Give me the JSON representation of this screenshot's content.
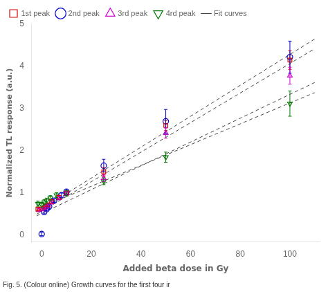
{
  "chart_data": {
    "type": "scatter",
    "x_label": "Added beta dose in Gy",
    "y_label": "Normalized TL response (a.u.)",
    "caption": "Fig. 5. (Colour online) Growth curves for the first four ir",
    "xlim": [
      -4,
      112
    ],
    "ylim": [
      -0.15,
      5.0
    ],
    "xticks": [
      0,
      20,
      40,
      60,
      80,
      100
    ],
    "yticks": [
      0,
      1,
      2,
      3,
      4,
      5
    ],
    "grid": false,
    "legend": "upper left",
    "series": [
      {
        "name": "1st peak",
        "color": "#dd0000",
        "marker": "square",
        "x": [
          -1.5,
          0.5,
          1.5,
          2.5,
          4,
          7,
          10,
          25,
          50,
          100
        ],
        "values": [
          0.62,
          0.63,
          0.68,
          0.72,
          0.8,
          0.9,
          1.0,
          1.5,
          2.6,
          4.15
        ],
        "yerr": [
          0.04,
          0.04,
          0.04,
          0.04,
          0.04,
          0.04,
          0.05,
          0.1,
          0.12,
          0.22
        ]
      },
      {
        "name": "2nd peak",
        "color": "#0000cc",
        "marker": "circle",
        "x": [
          0,
          1,
          2,
          3,
          5,
          8,
          10,
          25,
          50,
          100
        ],
        "values": [
          0.03,
          0.55,
          0.62,
          0.68,
          0.82,
          0.95,
          1.03,
          1.65,
          2.7,
          4.22
        ],
        "yerr": [
          0.04,
          0.04,
          0.04,
          0.04,
          0.04,
          0.05,
          0.06,
          0.15,
          0.28,
          0.38
        ]
      },
      {
        "name": "3rd peak",
        "color": "#cc00cc",
        "marker": "triangle-up",
        "x": [
          -1,
          0.5,
          1.5,
          2.5,
          4,
          7,
          10,
          25,
          50,
          100
        ],
        "values": [
          0.6,
          0.62,
          0.66,
          0.7,
          0.78,
          0.88,
          1.0,
          1.35,
          2.42,
          3.78
        ],
        "yerr": [
          0.04,
          0.04,
          0.04,
          0.04,
          0.04,
          0.04,
          0.05,
          0.08,
          0.12,
          0.2
        ]
      },
      {
        "name": "4rd peak",
        "color": "#007700",
        "marker": "triangle-down",
        "x": [
          -1.5,
          0,
          1,
          2,
          3.5,
          6,
          10,
          25,
          50,
          100
        ],
        "values": [
          0.75,
          0.72,
          0.78,
          0.82,
          0.88,
          0.95,
          1.0,
          1.28,
          1.85,
          3.12
        ],
        "yerr": [
          0.06,
          0.06,
          0.06,
          0.06,
          0.06,
          0.06,
          0.06,
          0.08,
          0.12,
          0.3
        ]
      }
    ],
    "fit_lines": {
      "name": "Fit curves",
      "color": "#444444",
      "line_style": "dashed",
      "lines": [
        {
          "x": [
            -2,
            110
          ],
          "values": [
            0.55,
            4.65
          ]
        },
        {
          "x": [
            -2,
            110
          ],
          "values": [
            0.5,
            4.42
          ]
        },
        {
          "x": [
            -2,
            110
          ],
          "values": [
            0.46,
            3.62
          ]
        },
        {
          "x": [
            -2,
            110
          ],
          "values": [
            0.62,
            3.38
          ]
        }
      ]
    }
  }
}
